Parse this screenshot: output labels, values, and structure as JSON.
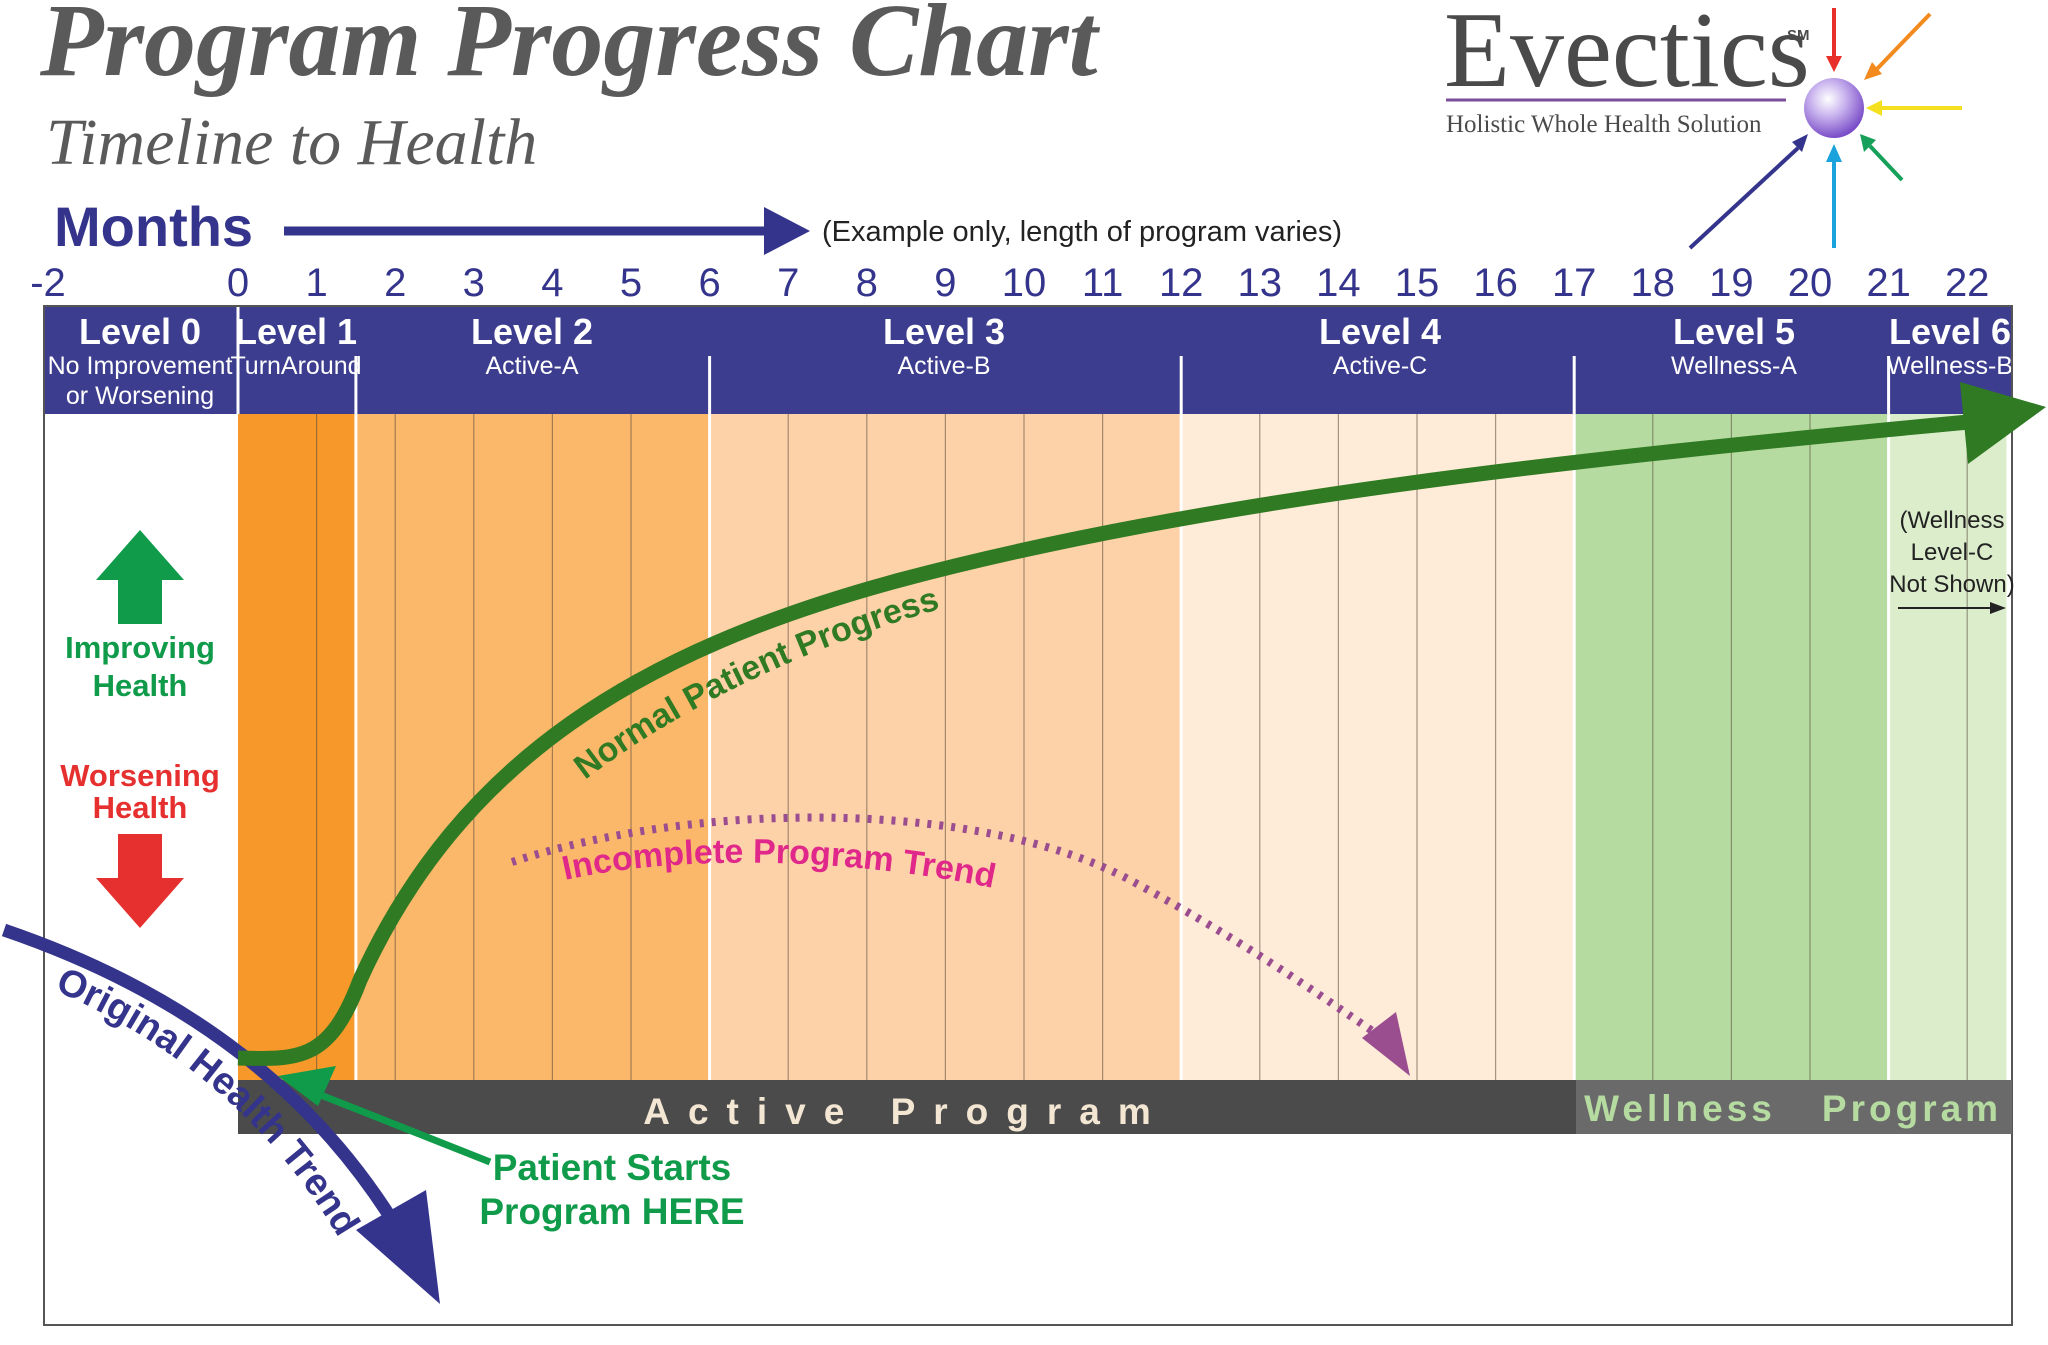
{
  "title": "Program Progress Chart",
  "subtitle": "Timeline to Health",
  "logo": {
    "name": "Evectics",
    "mark": "SM",
    "tagline": "Holistic Whole Health Solution"
  },
  "axis": {
    "label": "Months",
    "note": "(Example only, length of program varies)",
    "ticks": [
      "-2",
      "0",
      "1",
      "2",
      "3",
      "4",
      "5",
      "6",
      "7",
      "8",
      "9",
      "10",
      "11",
      "12",
      "13",
      "14",
      "15",
      "16",
      "17",
      "18",
      "19",
      "20",
      "21",
      "22"
    ]
  },
  "levels": [
    {
      "name": "Level 0",
      "desc": "No Improvement",
      "desc2": "or Worsening"
    },
    {
      "name": "Level 1",
      "desc": "TurnAround"
    },
    {
      "name": "Level 2",
      "desc": "Active-A"
    },
    {
      "name": "Level 3",
      "desc": "Active-B"
    },
    {
      "name": "Level 4",
      "desc": "Active-C"
    },
    {
      "name": "Level 5",
      "desc": "Wellness-A"
    },
    {
      "name": "Level 6",
      "desc": "Wellness-B"
    }
  ],
  "legend": {
    "improving": "Improving Health",
    "worsening": "Worsening Health"
  },
  "curves": {
    "normal": "Normal Patient Progress",
    "incomplete": "Incomplete Program Trend",
    "original": "Original Health Trend"
  },
  "callout": {
    "start_line1": "Patient Starts",
    "start_line2": "Program HERE",
    "wellness_c_line1": "(Wellness",
    "wellness_c_line2": "Level-C",
    "wellness_c_line3": "Not Shown)"
  },
  "bars": {
    "active": "Active  Program",
    "wellness": "Wellness   Program"
  },
  "colors": {
    "header": "#3d3d8f",
    "axis_blue": "#34348c",
    "level1": "#f7982a",
    "level2": "#fbb86a",
    "level3": "#fdd2a8",
    "level4": "#feebd8",
    "level5": "#b5dba1",
    "level6": "#dcedcc",
    "progress_green": "#2f7a22",
    "incomplete_pink": "#e0278a",
    "improving_green": "#0f9b4a",
    "worsening_red": "#e63030",
    "bottom_bar": "#4b4b4b",
    "wellness_bar": "#6a6a6a",
    "wellness_text": "#b5dba1"
  }
}
